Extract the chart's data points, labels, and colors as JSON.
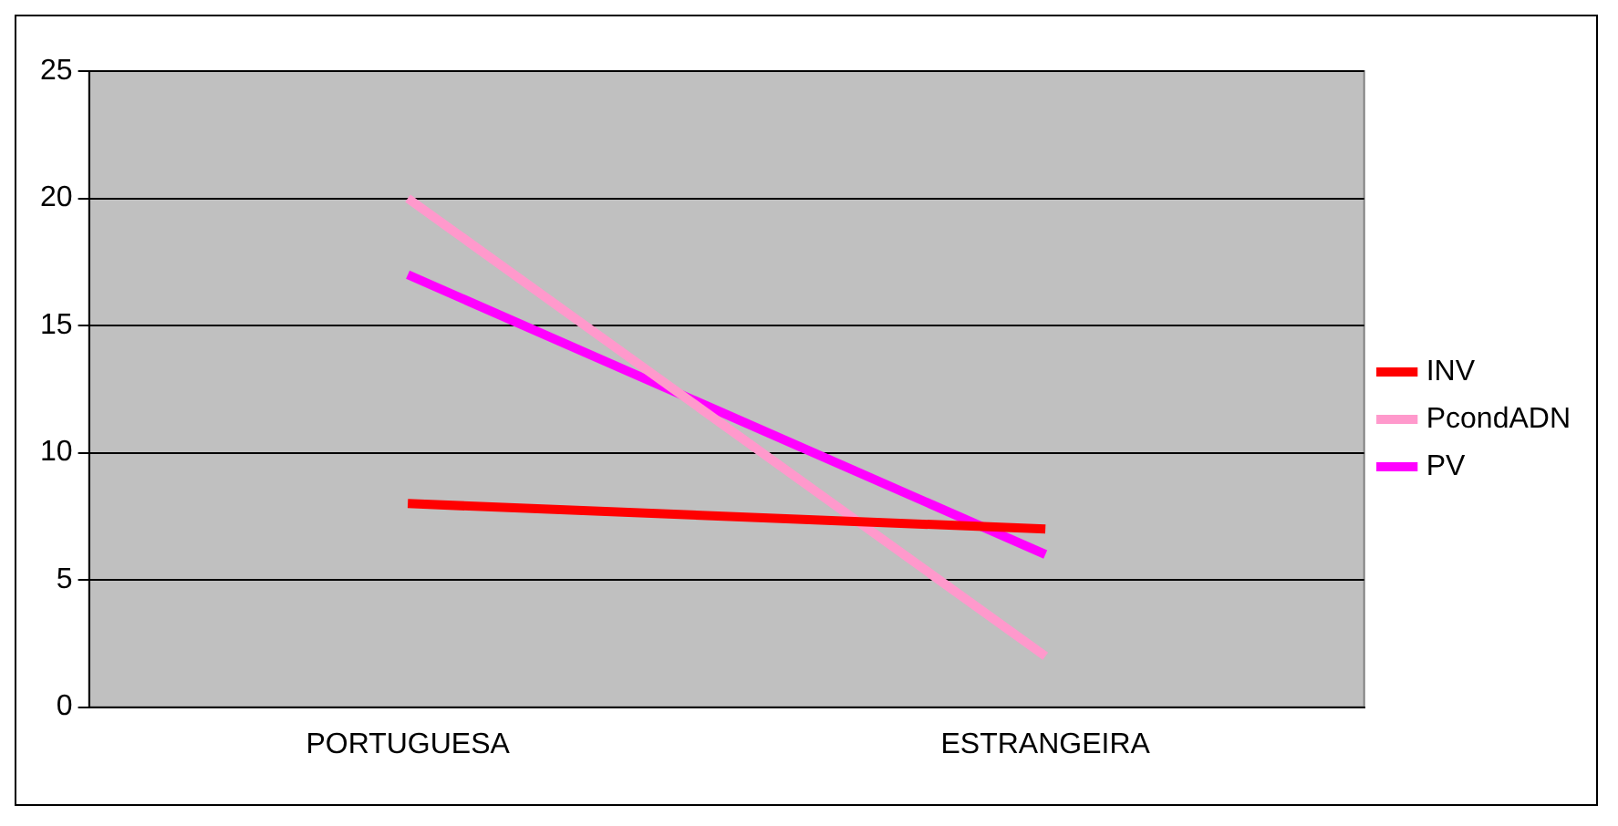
{
  "chart_data": {
    "type": "line",
    "categories": [
      "PORTUGUESA",
      "ESTRANGEIRA"
    ],
    "series": [
      {
        "name": "INV",
        "color": "#ff0000",
        "values": [
          8,
          7
        ]
      },
      {
        "name": "PcondADN",
        "color": "#ff99cc",
        "values": [
          20,
          2
        ]
      },
      {
        "name": "PV",
        "color": "#ff00ff",
        "values": [
          17,
          6
        ]
      }
    ],
    "ylim": [
      0,
      25
    ],
    "yticks": [
      0,
      5,
      10,
      15,
      20,
      25
    ],
    "grid": "y",
    "legend": "right",
    "marker": "none",
    "line_style": "solid"
  }
}
